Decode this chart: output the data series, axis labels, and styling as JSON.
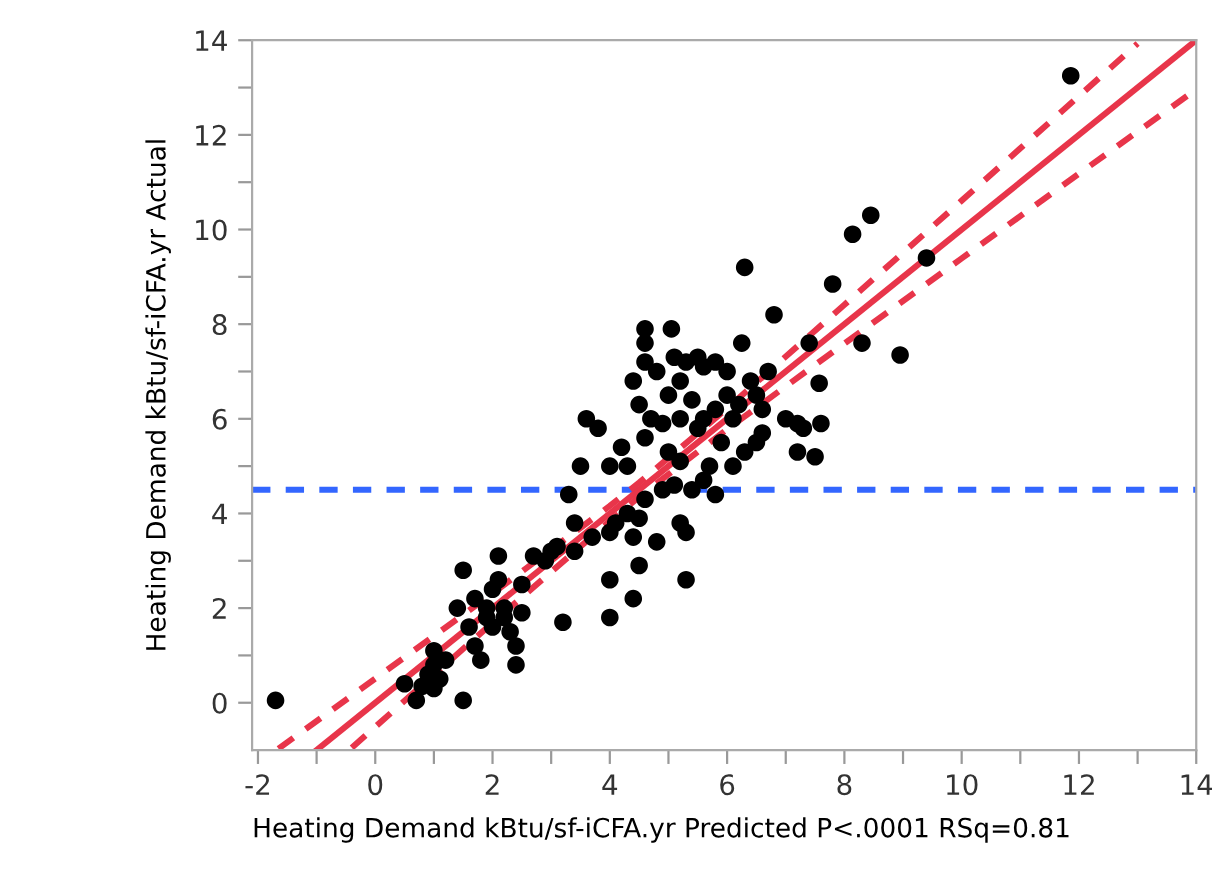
{
  "chart_data": {
    "type": "scatter",
    "xlabel": "Heating Demand kBtu/sf-iCFA.yr Predicted P<.0001 RSq=0.81",
    "ylabel": "Heating Demand kBtu/sf-iCFA.yr Actual",
    "xlim": [
      -2.1,
      14
    ],
    "ylim": [
      -1,
      14
    ],
    "xticks": [
      -2,
      {
        "value": -1,
        "label": null
      },
      0,
      {
        "value": 1,
        "label": null
      },
      2,
      {
        "value": 3,
        "label": null
      },
      4,
      {
        "value": 5,
        "label": null
      },
      6,
      {
        "value": 7,
        "label": null
      },
      8,
      {
        "value": 9,
        "label": null
      },
      10,
      {
        "value": 11,
        "label": null
      },
      12,
      {
        "value": 13,
        "label": null
      },
      14
    ],
    "yticks": [
      0,
      {
        "value": 1,
        "label": null
      },
      2,
      {
        "value": 3,
        "label": null
      },
      4,
      {
        "value": 5,
        "label": null
      },
      6,
      {
        "value": 7,
        "label": null
      },
      8,
      {
        "value": 9,
        "label": null
      },
      10,
      {
        "value": 11,
        "label": null
      },
      12,
      {
        "value": 13,
        "label": null
      },
      14
    ],
    "grid": false,
    "legend": false,
    "ref_lines": [
      {
        "axis": "y",
        "value": 4.5,
        "color": "#3366ff",
        "line_style": "dashed"
      }
    ],
    "series": [
      {
        "marker": "circle",
        "color": "#000000",
        "x": [
          -1.7,
          0.5,
          0.7,
          0.8,
          0.9,
          1.0,
          1.0,
          1.1,
          1.2,
          1.0,
          1.5,
          1.6,
          1.5,
          1.4,
          1.7,
          1.8,
          1.7,
          1.9,
          2.0,
          2.0,
          2.1,
          2.1,
          2.2,
          2.3,
          2.4,
          2.4,
          2.5,
          2.5,
          2.2,
          1.9,
          2.7,
          2.9,
          3.0,
          3.1,
          3.2,
          3.4,
          3.4,
          3.5,
          3.3,
          3.6,
          3.8,
          3.7,
          4.0,
          4.0,
          4.0,
          4.1,
          4.0,
          4.3,
          4.2,
          4.3,
          4.4,
          4.4,
          4.5,
          4.5,
          4.6,
          4.8,
          4.9,
          5.1,
          5.2,
          5.3,
          5.3,
          5.2,
          5.4,
          4.6,
          4.5,
          4.7,
          4.4,
          4.6,
          4.8,
          4.6,
          4.6,
          5.05,
          5.1,
          5.3,
          5.5,
          5.6,
          5.8,
          5.0,
          5.2,
          5.4,
          5.6,
          5.8,
          6.0,
          6.0,
          6.2,
          6.4,
          6.5,
          6.7,
          6.5,
          6.3,
          5.9,
          5.7,
          5.6,
          5.8,
          6.1,
          6.6,
          7.0,
          7.2,
          7.3,
          7.2,
          7.6,
          7.5,
          7.57,
          6.25,
          7.4,
          8.3,
          6.3,
          6.8,
          7.8,
          8.14,
          8.95,
          8.45,
          9.4,
          11.86,
          5.5,
          5.0,
          4.9,
          5.2,
          6.1,
          6.6
        ],
        "values": [
          0.05,
          0.4,
          0.05,
          0.35,
          0.6,
          1.1,
          0.8,
          0.5,
          0.9,
          0.3,
          0.05,
          1.6,
          2.8,
          2.0,
          1.2,
          0.9,
          2.2,
          1.8,
          1.6,
          2.4,
          2.6,
          3.1,
          2.0,
          1.5,
          1.2,
          0.8,
          1.9,
          2.5,
          1.8,
          2.0,
          3.1,
          3.0,
          3.2,
          3.3,
          1.7,
          3.2,
          3.8,
          5.0,
          4.4,
          6.0,
          5.8,
          3.5,
          3.6,
          2.6,
          1.8,
          3.8,
          5.0,
          4.0,
          5.4,
          5.0,
          2.2,
          3.5,
          2.9,
          3.9,
          4.3,
          3.4,
          4.5,
          4.6,
          3.8,
          3.6,
          2.6,
          5.1,
          4.5,
          5.6,
          6.3,
          6.0,
          6.8,
          7.2,
          7.0,
          7.6,
          7.9,
          7.9,
          7.3,
          7.2,
          7.3,
          7.1,
          7.2,
          6.5,
          6.8,
          6.4,
          6.0,
          6.2,
          6.5,
          7.0,
          6.3,
          6.8,
          6.5,
          7.0,
          5.5,
          5.3,
          5.5,
          5.0,
          4.7,
          4.4,
          5.0,
          6.2,
          6.0,
          5.9,
          5.8,
          5.3,
          5.9,
          5.2,
          6.75,
          7.6,
          7.6,
          7.6,
          9.2,
          8.2,
          8.85,
          9.9,
          7.35,
          10.3,
          9.4,
          13.25,
          5.8,
          5.3,
          5.9,
          6.0,
          6.0,
          5.7
        ]
      },
      {
        "type": "line",
        "color": "#e8354a",
        "line_style": "solid",
        "marker": "none",
        "x": [
          -1,
          14
        ],
        "values": [
          -1,
          14
        ]
      },
      {
        "type": "line",
        "color": "#e8354a",
        "line_style": "dashed",
        "marker": "none",
        "x": [
          -1.65,
          0,
          2,
          4,
          4.5,
          6,
          8,
          10,
          12,
          13
        ],
        "values": [
          -0.97,
          0.51,
          2.31,
          4.16,
          4.65,
          6.22,
          8.41,
          10.61,
          12.82,
          13.93
        ]
      },
      {
        "type": "line",
        "color": "#e8354a",
        "line_style": "dashed",
        "marker": "none",
        "x": [
          -0.4,
          0,
          2,
          4,
          4.5,
          6,
          8,
          10,
          12,
          14
        ],
        "values": [
          -0.95,
          -0.51,
          1.69,
          3.84,
          4.35,
          5.78,
          7.59,
          9.39,
          11.18,
          12.96
        ]
      }
    ]
  }
}
